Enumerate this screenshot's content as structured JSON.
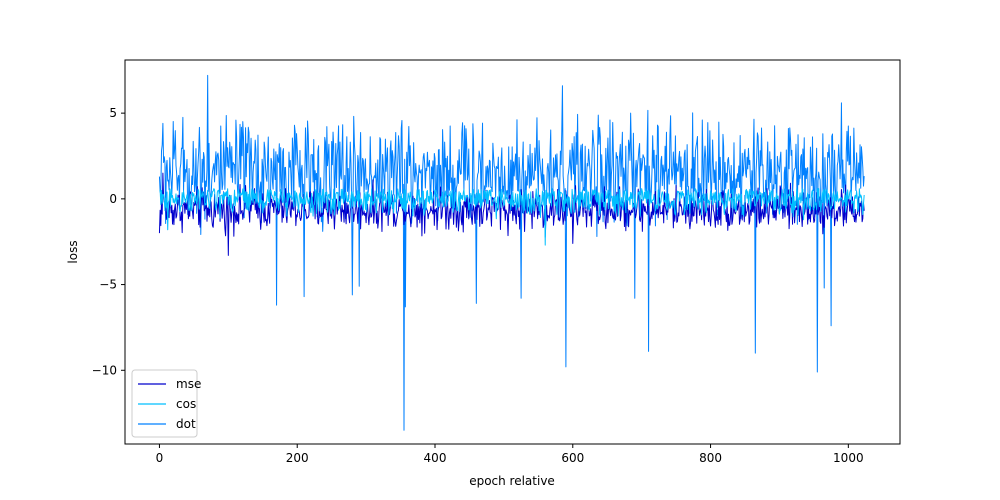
{
  "chart_data": {
    "type": "line",
    "title": "",
    "xlabel": "epoch relative",
    "ylabel": "loss",
    "xlim": [
      -50,
      1075
    ],
    "ylim": [
      -14.3,
      8.1
    ],
    "xticks": [
      0,
      200,
      400,
      600,
      800,
      1000
    ],
    "yticks": [
      -10,
      -5,
      0,
      5
    ],
    "legend_position": "lower-left",
    "grid": false,
    "n_points": 1024,
    "series": [
      {
        "name": "mse",
        "color": "#0000cc",
        "level": -0.6,
        "spread": 0.9,
        "min": -3.3,
        "max": 1.5,
        "spikes": [
          [
            0,
            -2.0
          ],
          [
            5,
            1.5
          ],
          [
            7,
            -0.2
          ],
          [
            100,
            -3.3
          ],
          [
            355,
            -1.5
          ],
          [
            600,
            -2.6
          ]
        ]
      },
      {
        "name": "cos",
        "color": "#00bfff",
        "level": 0.0,
        "spread": 0.7,
        "min": -2.7,
        "max": 0.6,
        "spikes": [
          [
            0,
            0.5
          ],
          [
            12,
            -1.8
          ],
          [
            560,
            -2.7
          ],
          [
            700,
            0.6
          ]
        ]
      },
      {
        "name": "dot",
        "color": "#0080ff",
        "level": 1.6,
        "spread": 2.2,
        "min": -13.5,
        "max": 7.2,
        "spikes": [
          [
            0,
            1.3
          ],
          [
            5,
            4.4
          ],
          [
            70,
            7.2
          ],
          [
            170,
            -6.2
          ],
          [
            210,
            -5.7
          ],
          [
            280,
            -5.6
          ],
          [
            290,
            -5.1
          ],
          [
            355,
            -13.5
          ],
          [
            357,
            -6.3
          ],
          [
            460,
            -6.1
          ],
          [
            525,
            -5.8
          ],
          [
            585,
            6.6
          ],
          [
            590,
            -9.8
          ],
          [
            690,
            -5.8
          ],
          [
            710,
            -8.9
          ],
          [
            865,
            -9.0
          ],
          [
            955,
            -10.1
          ],
          [
            965,
            -5.2
          ],
          [
            975,
            -7.4
          ],
          [
            990,
            5.6
          ],
          [
            1020,
            2.5
          ]
        ]
      }
    ]
  }
}
